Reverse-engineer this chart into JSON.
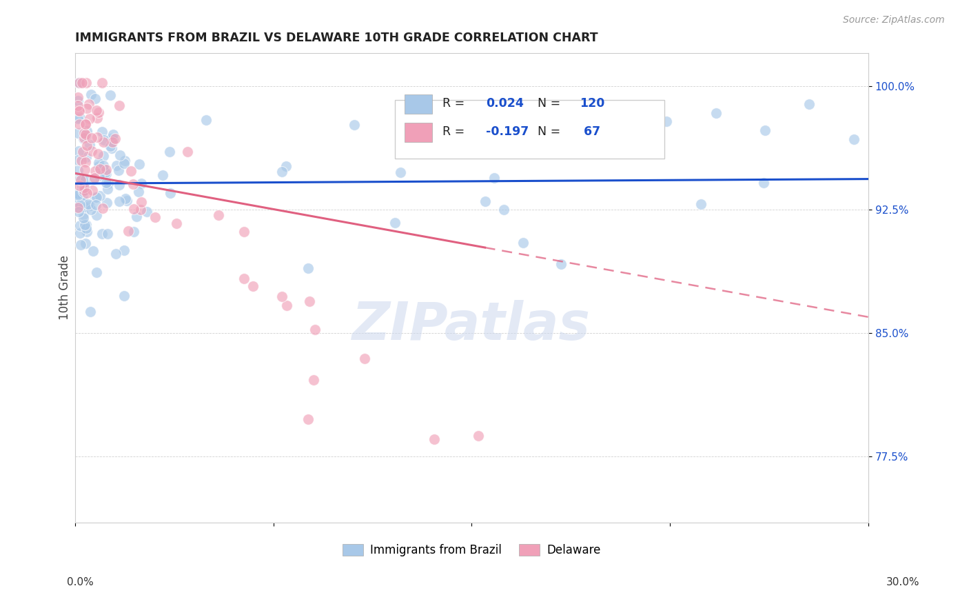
{
  "title": "IMMIGRANTS FROM BRAZIL VS DELAWARE 10TH GRADE CORRELATION CHART",
  "source": "Source: ZipAtlas.com",
  "ylabel": "10th Grade",
  "y_ticks": [
    0.775,
    0.85,
    0.925,
    1.0
  ],
  "y_tick_labels": [
    "77.5%",
    "85.0%",
    "92.5%",
    "100.0%"
  ],
  "x_min": 0.0,
  "x_max": 0.3,
  "y_min": 0.735,
  "y_max": 1.02,
  "R_blue": 0.024,
  "N_blue": 120,
  "R_pink": -0.197,
  "N_pink": 67,
  "blue_color": "#a8c8e8",
  "pink_color": "#f0a0b8",
  "blue_line_color": "#1a4fcc",
  "pink_line_color": "#e06080",
  "legend_R_color": "#1a4fcc",
  "watermark": "ZIPatlas"
}
